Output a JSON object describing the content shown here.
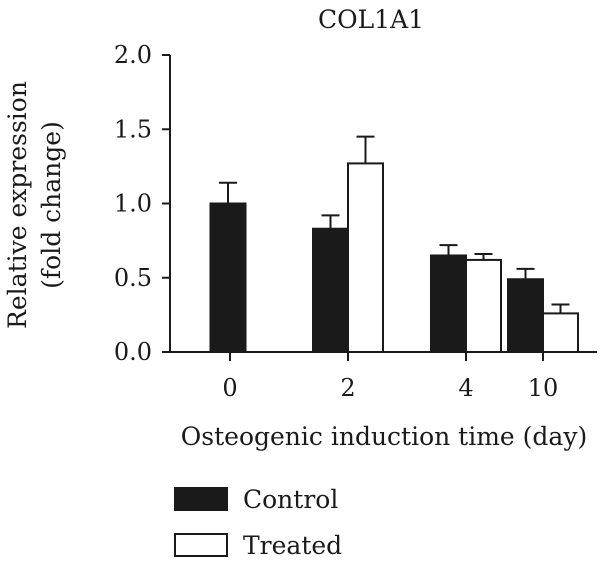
{
  "chart_data": {
    "type": "bar",
    "title": "COL1A1",
    "xlabel": "Osteogenic induction time (day)",
    "ylabel": [
      "Relative expression",
      "(fold change)"
    ],
    "categories": [
      "0",
      "2",
      "4",
      "10"
    ],
    "yticks": [
      "0.0",
      "0.5",
      "1.0",
      "1.5",
      "2.0"
    ],
    "ylim": [
      0,
      2.0
    ],
    "grid": false,
    "legend_position": "bottom-left",
    "series": [
      {
        "name": "Control",
        "color": "#1a1a1a",
        "values": [
          1.0,
          0.83,
          0.65,
          0.49
        ],
        "errors": [
          0.14,
          0.09,
          0.07,
          0.07
        ]
      },
      {
        "name": "Treated",
        "color": "#ffffff",
        "values": [
          null,
          1.27,
          0.62,
          0.26
        ],
        "errors": [
          null,
          0.18,
          0.04,
          0.06
        ]
      }
    ]
  }
}
